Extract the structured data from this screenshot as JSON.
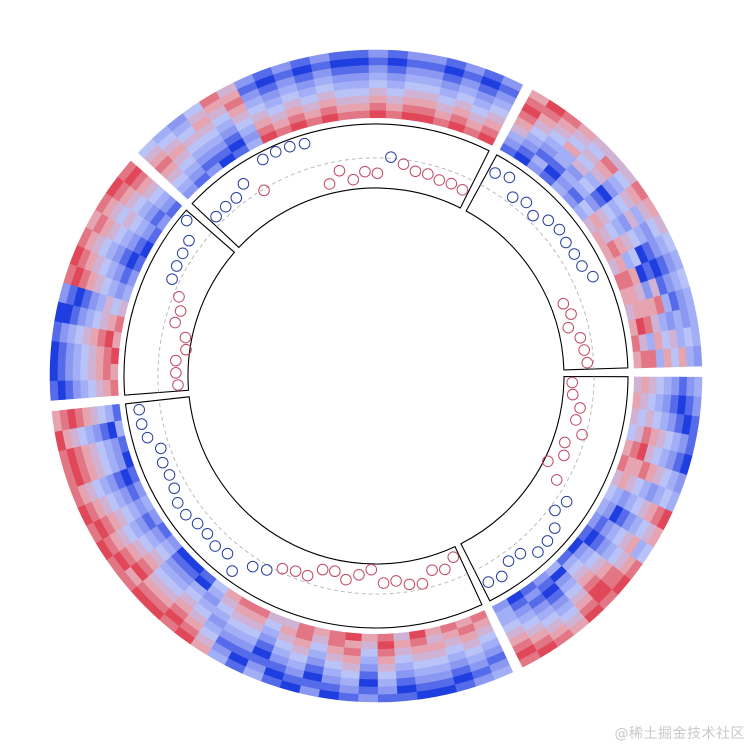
{
  "chart_data": {
    "type": "heatmap",
    "layout": "circular",
    "title": "",
    "tracks": [
      "heatmap",
      "points"
    ],
    "points_ylim": [
      0,
      1
    ],
    "reference_line": 0.47,
    "heatmap_scale": [
      0,
      8
    ],
    "heatmap_colors": [
      "#1f3ee0",
      "#8a98f2",
      "#b9c3f7",
      "#e6a3b0",
      "#e0485a"
    ],
    "point_colors": {
      "above": "#2a3f9e",
      "below": "#c24a66"
    },
    "sectors": [
      {
        "points": [
          0.74,
          0.8,
          0.58,
          0.65,
          0.57,
          0.69,
          0.73,
          0.69,
          0.7,
          0.71,
          0.79,
          0.2,
          0.26,
          0.16,
          0.31,
          0.34,
          0.37
        ],
        "heatmap": [
          "10213235665765676",
          "21302146576766857",
          "32113325463656737",
          "53232414354026563",
          "64335303240157346",
          "75464524531013254",
          "86545635322121336",
          "77654746543232243",
          "68765557654343332"
        ]
      },
      {
        "points": [
          0.13,
          0.15,
          0.29,
          0.26,
          0.41,
          0.19,
          0.25,
          0.06,
          0.32,
          0.63,
          0.56,
          0.73,
          0.78,
          0.8,
          0.64,
          0.62,
          0.76,
          0.73
        ],
        "heatmap": [
          "565467543210132102",
          "654576632102301213",
          "545786520213420123",
          "434657431324531234",
          "323546342435642345",
          "212435253546753456",
          "101324364657864567",
          "210213475367875678",
          "321102386478786787"
        ]
      },
      {
        "points": [
          0.14,
          0.27,
          0.22,
          0.39,
          0.36,
          0.28,
          0.3,
          0.09,
          0.18,
          0.28,
          0.18,
          0.2,
          0.36,
          0.36,
          0.41,
          0.54,
          0.61,
          0.85,
          0.68,
          0.72,
          0.67,
          0.68,
          0.74,
          0.74,
          0.67,
          0.64,
          0.66,
          0.61,
          0.76,
          0.8,
          0.8
        ],
        "heatmap": [
          "7676857687675577641002123210131",
          "6765768567576466530113212102203",
          "5656657476465355423224323213314",
          "4545546365354244334335434324425",
          "3434435254243133245446545435536",
          "2323324143132022356557656546647",
          "1212213032021111467668767657758",
          "2101102121110202578776878768867",
          "3210011210201313687887787877786"
        ]
      },
      {
        "points": [
          0.16,
          0.19,
          0.2,
          0.06,
          0.1,
          0.31,
          0.28,
          0.38,
          0.59,
          0.62,
          0.64,
          0.67,
          0.89
        ],
        "heatmap": [
          "7686753210121",
          "6778642101212",
          "5667553212323",
          "4556434323434",
          "3445325434545",
          "2334216545456",
          "1223107656567",
          "0112018767678",
          "1001027876787"
        ]
      },
      {
        "points": [
          0.59,
          0.6,
          0.6,
          0.71,
          0.45,
          0.88,
          0.9,
          0.89,
          0.86,
          0.15,
          0.32,
          0.15,
          0.26,
          0.23,
          0.49,
          0.4,
          0.32,
          0.32,
          0.28,
          0.29,
          0.27
        ],
        "heatmap": [
          "212013878787787887878",
          "321102767676676776767",
          "432213656565565665656",
          "543324545454454554545",
          "654435434343343443434",
          "765546323232232332323",
          "654657212121121221212",
          "543566101010010110101",
          "432475212121121221212"
        ]
      }
    ]
  },
  "watermark": "@稀土掘金技术社区"
}
